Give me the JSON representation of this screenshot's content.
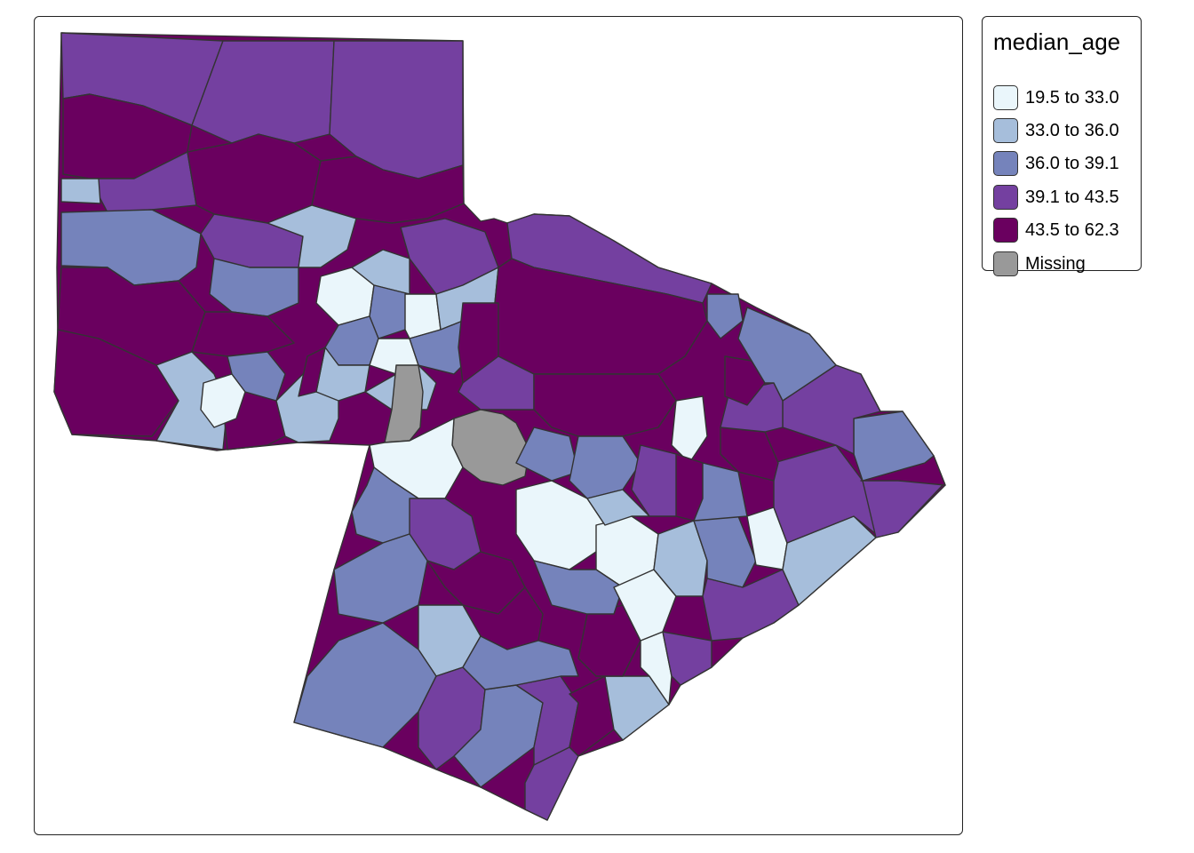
{
  "legend": {
    "title": "median_age",
    "items": [
      {
        "label": "19.5 to 33.0",
        "color": "#eaf6fb"
      },
      {
        "label": "33.0 to 36.0",
        "color": "#a6bedb"
      },
      {
        "label": "36.0 to 39.1",
        "color": "#7583bb"
      },
      {
        "label": "39.1 to 43.5",
        "color": "#7440a0"
      },
      {
        "label": "43.5 to 62.3",
        "color": "#6a005f"
      },
      {
        "label": "Missing",
        "color": "#999999"
      }
    ]
  },
  "map": {
    "border_color": "#333333",
    "category_keys": [
      "19.5 to 33.0",
      "33.0 to 36.0",
      "36.0 to 39.1",
      "39.1 to 43.5",
      "43.5 to 62.3",
      "Missing"
    ]
  }
}
